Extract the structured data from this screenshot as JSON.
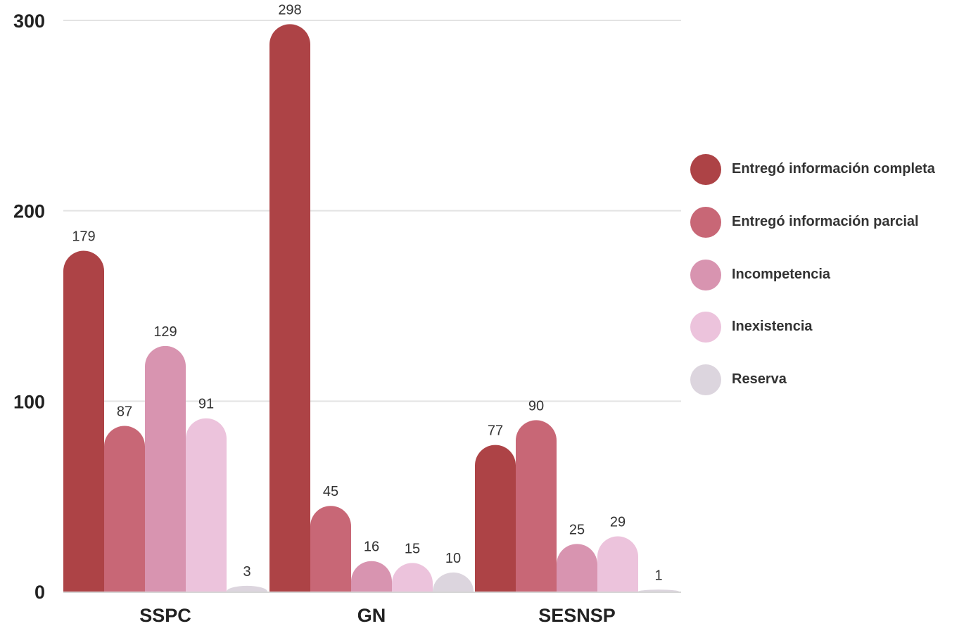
{
  "chart_data": {
    "type": "bar",
    "categories": [
      "SSPC",
      "GN",
      "SESNSP"
    ],
    "series": [
      {
        "name": "Entregó información completa",
        "values": [
          179,
          298,
          77
        ],
        "color": "#ad4346"
      },
      {
        "name": "Entregó información parcial",
        "values": [
          87,
          45,
          90
        ],
        "color": "#c86776"
      },
      {
        "name": "Incompetencia",
        "values": [
          129,
          16,
          25
        ],
        "color": "#d894b0"
      },
      {
        "name": "Inexistencia",
        "values": [
          91,
          15,
          29
        ],
        "color": "#ecc3dc"
      },
      {
        "name": "Reserva",
        "values": [
          3,
          10,
          1
        ],
        "color": "#dcd5de"
      }
    ],
    "yticks": [
      "0",
      "100",
      "200",
      "300"
    ],
    "ylim": [
      0,
      300
    ],
    "grid": true,
    "legend_position": "right"
  }
}
